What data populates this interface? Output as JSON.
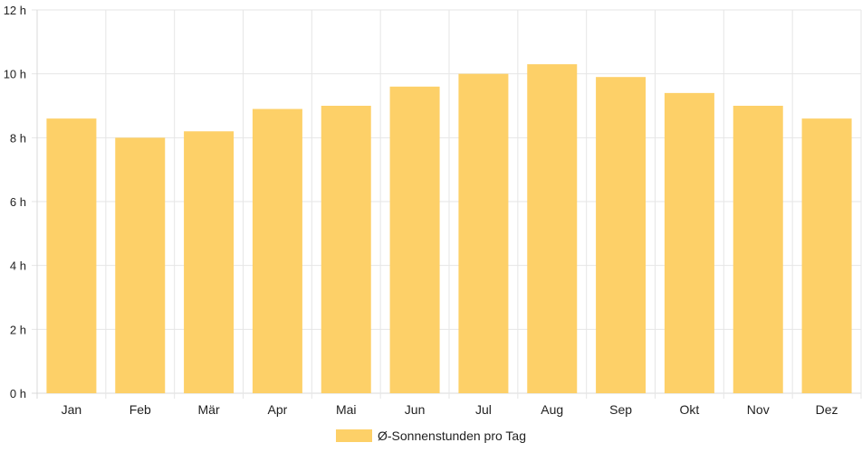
{
  "chart_data": {
    "type": "bar",
    "categories": [
      "Jan",
      "Feb",
      "Mär",
      "Apr",
      "Mai",
      "Jun",
      "Jul",
      "Aug",
      "Sep",
      "Okt",
      "Nov",
      "Dez"
    ],
    "series": [
      {
        "name": "Ø-Sonnenstunden pro Tag",
        "values": [
          8.6,
          8.0,
          8.2,
          8.9,
          9.0,
          9.6,
          10.0,
          10.3,
          9.9,
          9.4,
          9.0,
          8.6
        ],
        "color": "#fdd068"
      }
    ],
    "y_ticks": [
      "0 h",
      "2 h",
      "4 h",
      "6 h",
      "8 h",
      "10 h",
      "12 h"
    ],
    "ylim": [
      0,
      12
    ],
    "grid": true,
    "legend_position": "bottom",
    "title": "",
    "xlabel": "",
    "ylabel": ""
  }
}
